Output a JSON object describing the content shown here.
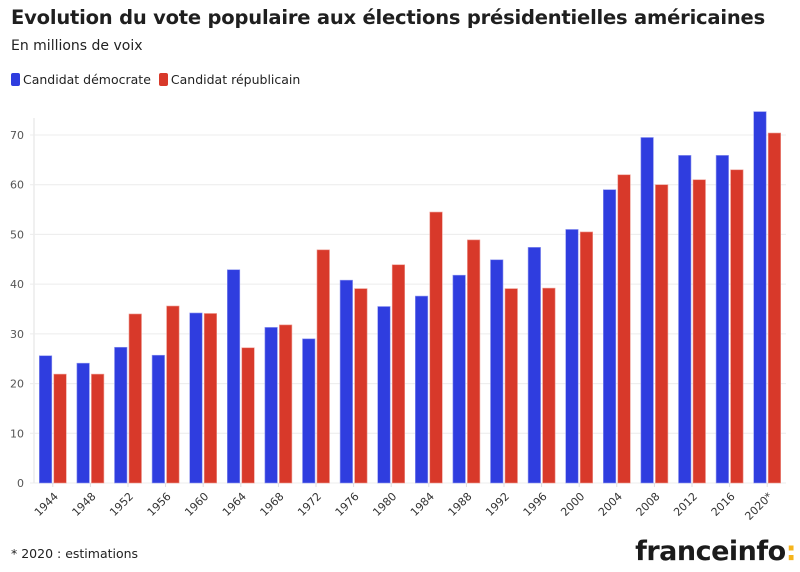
{
  "header": {
    "title": "Evolution du vote populaire aux élections présidentielles américaines",
    "subtitle": "En millions de voix"
  },
  "legend": [
    {
      "label": "Candidat démocrate",
      "color": "#2f3ddf"
    },
    {
      "label": "Candidat républicain",
      "color": "#d8392a"
    }
  ],
  "footer": {
    "footnote": "* 2020 : estimations",
    "logo_text": "franceinfo",
    "logo_colon": ":"
  },
  "chart_data": {
    "type": "bar",
    "title": "Evolution du vote populaire aux élections présidentielles américaines",
    "subtitle": "En millions de voix",
    "xlabel": "",
    "ylabel": "",
    "ylim": [
      0,
      70
    ],
    "yticks": [
      0,
      10,
      20,
      30,
      40,
      50,
      60,
      70
    ],
    "grid": true,
    "legend_position": "top-left",
    "categories": [
      "1944",
      "1948",
      "1952",
      "1956",
      "1960",
      "1964",
      "1968",
      "1972",
      "1976",
      "1980",
      "1984",
      "1988",
      "1992",
      "1996",
      "2000",
      "2004",
      "2008",
      "2012",
      "2016",
      "2020*"
    ],
    "series": [
      {
        "name": "Candidat démocrate",
        "color": "#2f3ddf",
        "values": [
          25.6,
          24.1,
          27.3,
          25.7,
          34.2,
          42.9,
          31.3,
          29.0,
          40.8,
          35.5,
          37.6,
          41.8,
          44.9,
          47.4,
          51.0,
          59.0,
          69.5,
          65.9,
          65.9,
          74.7
        ]
      },
      {
        "name": "Candidat républicain",
        "color": "#d8392a",
        "values": [
          21.9,
          21.9,
          34.0,
          35.6,
          34.1,
          27.2,
          31.8,
          46.9,
          39.1,
          43.9,
          54.5,
          48.9,
          39.1,
          39.2,
          50.5,
          62.0,
          60.0,
          61.0,
          63.0,
          70.4
        ]
      }
    ],
    "annotations": [
      "* 2020 : estimations"
    ]
  }
}
